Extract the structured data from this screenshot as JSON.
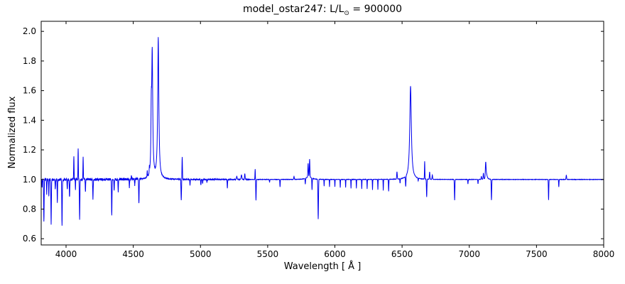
{
  "chart_data": {
    "type": "line",
    "title": {
      "prefix": "model_ostar247: L/L",
      "solar": "⊙",
      "suffix": " = 900000"
    },
    "xlabel": "Wavelength [ Å ]",
    "ylabel": "Normalized flux",
    "xlim": [
      3815,
      8000
    ],
    "ylim": [
      0.558,
      2.068
    ],
    "xticks": [
      4000,
      4500,
      5000,
      5500,
      6000,
      6500,
      7000,
      7500,
      8000
    ],
    "yticks": [
      0.6,
      0.8,
      1.0,
      1.2,
      1.4,
      1.6,
      1.8,
      2.0
    ],
    "legend": "none",
    "grid": false,
    "line_color": "#0000ee",
    "axis_color": "#000000",
    "baseline_flux": 1.0,
    "sample_step_angstrom": 1,
    "noise_regions": [
      [
        3815,
        4560,
        0.016
      ],
      [
        4560,
        5360,
        0.006
      ],
      [
        5360,
        8000,
        0.0025
      ]
    ],
    "features_format": [
      "center_wavelength",
      "amplitude",
      "width",
      "profile(g=gauss,l=lorentz)"
    ],
    "features": [
      [
        3822,
        -0.06,
        1.5,
        "g"
      ],
      [
        3835,
        -0.29,
        1.8,
        "g"
      ],
      [
        3856,
        -0.1,
        1.5,
        "g"
      ],
      [
        3872,
        -0.12,
        1.5,
        "g"
      ],
      [
        3889,
        -0.3,
        1.8,
        "g"
      ],
      [
        3920,
        -0.07,
        1.5,
        "g"
      ],
      [
        3935,
        -0.16,
        1.5,
        "g"
      ],
      [
        3970,
        -0.32,
        1.8,
        "g"
      ],
      [
        4009,
        -0.07,
        1.5,
        "g"
      ],
      [
        4026,
        -0.12,
        1.8,
        "g"
      ],
      [
        4058,
        0.16,
        1.5,
        "g"
      ],
      [
        4070,
        -0.07,
        1.2,
        "g"
      ],
      [
        4090,
        0.21,
        1.5,
        "g"
      ],
      [
        4101,
        -0.28,
        1.8,
        "g"
      ],
      [
        4127,
        0.16,
        1.5,
        "g"
      ],
      [
        4144,
        -0.09,
        1.5,
        "g"
      ],
      [
        4200,
        -0.13,
        1.8,
        "g"
      ],
      [
        4340,
        -0.25,
        1.8,
        "g"
      ],
      [
        4358,
        -0.08,
        1.5,
        "g"
      ],
      [
        4388,
        -0.09,
        1.5,
        "g"
      ],
      [
        4471,
        -0.06,
        1.5,
        "g"
      ],
      [
        4486,
        0.03,
        1.5,
        "g"
      ],
      [
        4511,
        -0.04,
        1.5,
        "g"
      ],
      [
        4542,
        -0.17,
        1.8,
        "g"
      ],
      [
        4604,
        0.04,
        1.5,
        "g"
      ],
      [
        4620,
        0.04,
        1.5,
        "g"
      ],
      [
        4634,
        0.35,
        3,
        "l"
      ],
      [
        4641,
        0.83,
        4.5,
        "l"
      ],
      [
        4686,
        0.95,
        5,
        "l"
      ],
      [
        4857,
        -0.14,
        2,
        "g"
      ],
      [
        4864,
        0.15,
        1.8,
        "g"
      ],
      [
        4922,
        -0.04,
        1.5,
        "g"
      ],
      [
        5003,
        -0.04,
        1.5,
        "g"
      ],
      [
        5016,
        -0.03,
        1.5,
        "g"
      ],
      [
        5048,
        -0.02,
        1.5,
        "g"
      ],
      [
        5200,
        -0.06,
        1.5,
        "g"
      ],
      [
        5270,
        0.02,
        3,
        "g"
      ],
      [
        5305,
        0.03,
        3,
        "g"
      ],
      [
        5330,
        0.04,
        2,
        "g"
      ],
      [
        5407,
        0.07,
        1.5,
        "g"
      ],
      [
        5413,
        -0.14,
        1.8,
        "g"
      ],
      [
        5514,
        -0.02,
        1.5,
        "g"
      ],
      [
        5592,
        -0.05,
        1.5,
        "g"
      ],
      [
        5696,
        0.02,
        2,
        "g"
      ],
      [
        5780,
        -0.04,
        1.5,
        "g"
      ],
      [
        5801,
        0.09,
        2,
        "g"
      ],
      [
        5806,
        0.02,
        20,
        "l"
      ],
      [
        5812,
        0.12,
        2,
        "g"
      ],
      [
        5830,
        -0.08,
        1.5,
        "g"
      ],
      [
        5876,
        -0.27,
        2,
        "g"
      ],
      [
        5920,
        -0.045,
        1.2,
        "g"
      ],
      [
        5960,
        -0.05,
        1.2,
        "g"
      ],
      [
        6000,
        -0.05,
        1.2,
        "g"
      ],
      [
        6040,
        -0.055,
        1.2,
        "g"
      ],
      [
        6080,
        -0.055,
        1.2,
        "g"
      ],
      [
        6120,
        -0.06,
        1.2,
        "g"
      ],
      [
        6160,
        -0.06,
        1.2,
        "g"
      ],
      [
        6200,
        -0.065,
        1.2,
        "g"
      ],
      [
        6240,
        -0.065,
        1.2,
        "g"
      ],
      [
        6280,
        -0.07,
        1.2,
        "g"
      ],
      [
        6320,
        -0.07,
        1.2,
        "g"
      ],
      [
        6360,
        -0.075,
        1.2,
        "g"
      ],
      [
        6400,
        -0.08,
        1.5,
        "g"
      ],
      [
        6462,
        0.05,
        2,
        "g"
      ],
      [
        6485,
        -0.03,
        1.5,
        "g"
      ],
      [
        6527,
        -0.07,
        1.8,
        "g"
      ],
      [
        6563,
        0.63,
        7,
        "l"
      ],
      [
        6620,
        -0.02,
        1.5,
        "g"
      ],
      [
        6668,
        0.12,
        1.5,
        "g"
      ],
      [
        6683,
        -0.12,
        1.8,
        "g"
      ],
      [
        6705,
        0.05,
        2,
        "g"
      ],
      [
        6725,
        0.03,
        2,
        "g"
      ],
      [
        6891,
        -0.14,
        1.8,
        "g"
      ],
      [
        6990,
        -0.03,
        1.5,
        "g"
      ],
      [
        7065,
        -0.03,
        1.5,
        "g"
      ],
      [
        7090,
        0.02,
        2,
        "g"
      ],
      [
        7105,
        0.04,
        2,
        "g"
      ],
      [
        7122,
        0.1,
        2.5,
        "g"
      ],
      [
        7128,
        0.04,
        6,
        "l"
      ],
      [
        7165,
        -0.14,
        1.8,
        "g"
      ],
      [
        7590,
        -0.14,
        1.6,
        "g"
      ],
      [
        7666,
        -0.05,
        1.5,
        "g"
      ],
      [
        7722,
        0.03,
        2,
        "g"
      ]
    ]
  }
}
